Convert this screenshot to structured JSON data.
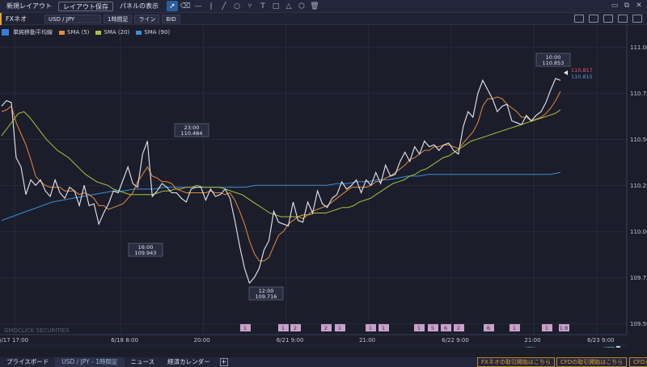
{
  "toolbar": {
    "new_layout": "新規レイアウト",
    "save_layout": "レイアウト保存",
    "show_panel": "パネルの表示",
    "tools": [
      "cursor-icon",
      "eraser-icon",
      "horizontal-line-icon",
      "vertical-line-icon",
      "trend-line-icon",
      "circle-icon",
      "fork-icon",
      "text-icon",
      "rectangle-icon",
      "triangle-icon",
      "polygon-icon",
      "trash-icon"
    ]
  },
  "secbar": {
    "product": "FXネオ",
    "pair": "USD / JPY",
    "timeframe": "1時間足",
    "chart_type": "ライン",
    "price_side": "BID"
  },
  "legend": {
    "title": "単純移動平均線",
    "items": [
      {
        "label": "SMA (5)",
        "color": "#e58b3a"
      },
      {
        "label": "SMA (20)",
        "color": "#a6c43a"
      },
      {
        "label": "SMA (90)",
        "color": "#3a8fd8"
      }
    ]
  },
  "watermark": "GMOCLICK SECURITIES",
  "chart_data": {
    "type": "line",
    "ylim": [
      109.44,
      111.12
    ],
    "y_ticks": [
      "111.000",
      "110.750",
      "110.500",
      "110.250",
      "110.000",
      "109.750",
      "109.500"
    ],
    "y_tick_values": [
      111.0,
      110.75,
      110.5,
      110.25,
      110.0,
      109.75,
      109.5
    ],
    "x_ticks": [
      "6/17 17:00",
      "6/18 8:00",
      "20:00",
      "6/21 9:00",
      "21:00",
      "6/22 9:00",
      "21:00",
      "6/23 9:00"
    ],
    "series": [
      {
        "name": "",
        "role": "price",
        "color": "#e8e8ee",
        "values": [
          110.68,
          110.71,
          110.7,
          110.4,
          110.35,
          110.2,
          110.28,
          110.25,
          110.28,
          110.22,
          110.19,
          110.28,
          110.21,
          110.18,
          110.24,
          110.22,
          110.14,
          110.25,
          110.14,
          110.15,
          110.04,
          110.1,
          110.15,
          110.22,
          110.21,
          110.28,
          110.35,
          110.26,
          110.24,
          110.42,
          110.49,
          110.19,
          110.22,
          110.26,
          110.24,
          110.21,
          110.21,
          110.18,
          110.16,
          110.23,
          110.24,
          110.24,
          110.17,
          110.23,
          110.19,
          110.2,
          110.23,
          110.18,
          110.06,
          109.92,
          109.8,
          109.72,
          109.75,
          109.8,
          109.9,
          109.95,
          110.11,
          110.05,
          110.04,
          110.03,
          110.16,
          110.06,
          110.05,
          110.16,
          110.1,
          110.22,
          110.15,
          110.13,
          110.18,
          110.2,
          110.27,
          110.23,
          110.25,
          110.28,
          110.21,
          110.28,
          110.25,
          110.32,
          110.26,
          110.36,
          110.3,
          110.31,
          110.38,
          110.43,
          110.38,
          110.46,
          110.42,
          110.49,
          110.46,
          110.47,
          110.44,
          110.47,
          110.48,
          110.44,
          110.42,
          110.57,
          110.65,
          110.62,
          110.75,
          110.82,
          110.77,
          110.72,
          110.65,
          110.68,
          110.69,
          110.6,
          110.59,
          110.58,
          110.63,
          110.6,
          110.63,
          110.65,
          110.7,
          110.77,
          110.83,
          110.82
        ]
      },
      {
        "name": "SMA (5)",
        "color": "#e58b3a",
        "values": [
          110.65,
          110.66,
          110.68,
          110.59,
          110.53,
          110.47,
          110.39,
          110.3,
          110.27,
          110.25,
          110.24,
          110.24,
          110.24,
          110.22,
          110.22,
          110.22,
          110.2,
          110.21,
          110.2,
          110.18,
          110.14,
          110.14,
          110.12,
          110.13,
          110.14,
          110.15,
          110.18,
          110.21,
          110.27,
          110.31,
          110.35,
          110.3,
          110.29,
          110.27,
          110.27,
          110.26,
          110.23,
          110.22,
          110.21,
          110.21,
          110.21,
          110.21,
          110.21,
          110.22,
          110.21,
          110.21,
          110.2,
          110.21,
          110.17,
          110.11,
          110.04,
          109.95,
          109.88,
          109.84,
          109.84,
          109.86,
          109.92,
          109.98,
          110.0,
          110.04,
          110.06,
          110.08,
          110.07,
          110.09,
          110.11,
          110.12,
          110.13,
          110.14,
          110.16,
          110.18,
          110.2,
          110.22,
          110.24,
          110.24,
          110.24,
          110.24,
          110.25,
          110.27,
          110.27,
          110.29,
          110.3,
          110.32,
          110.34,
          110.36,
          110.39,
          110.4,
          110.42,
          110.44,
          110.44,
          110.46,
          110.46,
          110.47,
          110.47,
          110.46,
          110.45,
          110.48,
          110.51,
          110.54,
          110.59,
          110.68,
          110.72,
          110.72,
          110.73,
          110.72,
          110.69,
          110.67,
          110.65,
          110.62,
          110.62,
          110.6,
          110.61,
          110.62,
          110.64,
          110.67,
          110.71,
          110.76
        ]
      },
      {
        "name": "SMA (20)",
        "color": "#a6c43a",
        "values": [
          110.52,
          110.56,
          110.6,
          110.64,
          110.65,
          110.62,
          110.58,
          110.54,
          110.5,
          110.47,
          110.44,
          110.42,
          110.4,
          110.37,
          110.34,
          110.31,
          110.29,
          110.27,
          110.26,
          110.25,
          110.23,
          110.22,
          110.21,
          110.2,
          110.2,
          110.2,
          110.2,
          110.2,
          110.21,
          110.22,
          110.22,
          110.23,
          110.23,
          110.24,
          110.24,
          110.25,
          110.24,
          110.24,
          110.24,
          110.24,
          110.23,
          110.22,
          110.21,
          110.2,
          110.18,
          110.16,
          110.14,
          110.12,
          110.1,
          110.09,
          110.08,
          110.08,
          110.08,
          110.08,
          110.09,
          110.09,
          110.1,
          110.1,
          110.1,
          110.11,
          110.12,
          110.13,
          110.13,
          110.14,
          110.16,
          110.17,
          110.18,
          110.2,
          110.22,
          110.24,
          110.26,
          110.27,
          110.28,
          110.3,
          110.31,
          110.33,
          110.34,
          110.36,
          110.38,
          110.4,
          110.41,
          110.43,
          110.45,
          110.47,
          110.49,
          110.5,
          110.51,
          110.52,
          110.53,
          110.54,
          110.55,
          110.56,
          110.57,
          110.58,
          110.59,
          110.6,
          110.61,
          110.62,
          110.63,
          110.64,
          110.66
        ]
      },
      {
        "name": "SMA (90)",
        "color": "#3a8fd8",
        "values": [
          110.06,
          110.08,
          110.1,
          110.12,
          110.14,
          110.16,
          110.17,
          110.18,
          110.19,
          110.2,
          110.21,
          110.22,
          110.22,
          110.23,
          110.23,
          110.23,
          110.24,
          110.24,
          110.24,
          110.24,
          110.24,
          110.24,
          110.24,
          110.24,
          110.24,
          110.25,
          110.25,
          110.25,
          110.25,
          110.25,
          110.25,
          110.25,
          110.25,
          110.26,
          110.26,
          110.27,
          110.27,
          110.28,
          110.28,
          110.29,
          110.3,
          110.3,
          110.31,
          110.31,
          110.31,
          110.31,
          110.31,
          110.31,
          110.31,
          110.31,
          110.31,
          110.31,
          110.31,
          110.31,
          110.31,
          110.32
        ]
      }
    ],
    "callouts": [
      {
        "time": "23:00",
        "price": "110.484"
      },
      {
        "time": "16:00",
        "price": "109.943"
      },
      {
        "time": "12:00",
        "price": "109.716"
      },
      {
        "time": "10:00",
        "price": "110.853"
      }
    ],
    "last_ask": "110.817",
    "last_bid": "110.815",
    "event_markers": [
      "1",
      "1",
      "2",
      "2",
      "1",
      "1",
      "1",
      "1",
      "5",
      "6",
      "2",
      "6",
      "1",
      "1",
      "1:8"
    ]
  },
  "bottombar": {
    "tabs": [
      "プライスボード",
      "USD / JPY - 1時間足",
      "ニュース",
      "経済カレンダー"
    ],
    "add": "+",
    "notice_fx": "FXネオの取引開始はこちら",
    "notice_cfd": "CFDの取引開始はこちら",
    "notice_cut": "CFDと"
  }
}
